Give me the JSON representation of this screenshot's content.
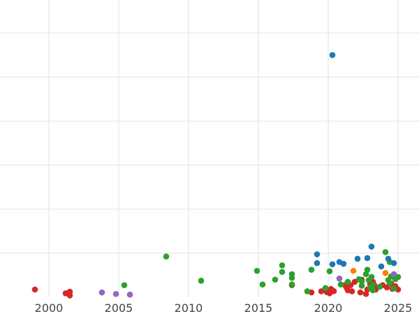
{
  "chart_data": {
    "type": "scatter",
    "title": "",
    "xlabel": "",
    "ylabel": "",
    "xlim": [
      1996.5,
      2026.5
    ],
    "ylim": [
      0,
      13.5
    ],
    "grid": true,
    "y_gridlines": [
      2,
      4,
      6,
      8,
      10,
      12
    ],
    "x_ticks": [
      2000,
      2005,
      2010,
      2015,
      2020,
      2025
    ],
    "x_tick_labels": [
      "2000",
      "2005",
      "2010",
      "2015",
      "2020",
      "2025"
    ],
    "series": [
      {
        "color": "#d62728",
        "points": [
          [
            1999.0,
            0.35
          ],
          [
            2001.2,
            0.18
          ],
          [
            2001.5,
            0.08
          ],
          [
            2001.5,
            0.25
          ],
          [
            2017.4,
            0.55
          ],
          [
            2018.8,
            0.22
          ],
          [
            2019.5,
            0.27
          ],
          [
            2019.9,
            0.23
          ],
          [
            2020.1,
            0.18
          ],
          [
            2020.2,
            0.38
          ],
          [
            2020.4,
            0.28
          ],
          [
            2021.2,
            0.55
          ],
          [
            2021.3,
            0.45
          ],
          [
            2021.4,
            0.32
          ],
          [
            2021.6,
            0.55
          ],
          [
            2021.7,
            0.27
          ],
          [
            2021.9,
            0.7
          ],
          [
            2022.3,
            0.22
          ],
          [
            2022.4,
            0.8
          ],
          [
            2022.7,
            0.15
          ],
          [
            2022.8,
            0.35
          ],
          [
            2023.0,
            0.6
          ],
          [
            2023.2,
            0.4
          ],
          [
            2023.2,
            0.7
          ],
          [
            2023.3,
            0.55
          ],
          [
            2023.4,
            0.35
          ],
          [
            2023.9,
            0.55
          ],
          [
            2024.2,
            0.45
          ],
          [
            2024.5,
            0.62
          ],
          [
            2024.6,
            0.38
          ],
          [
            2024.8,
            0.5
          ],
          [
            2025.0,
            0.35
          ]
        ]
      },
      {
        "color": "#2ca02c",
        "points": [
          [
            2005.4,
            0.55
          ],
          [
            2008.4,
            1.85
          ],
          [
            2010.9,
            0.75
          ],
          [
            2014.9,
            1.2
          ],
          [
            2015.3,
            0.58
          ],
          [
            2016.2,
            0.8
          ],
          [
            2016.7,
            1.45
          ],
          [
            2016.7,
            1.15
          ],
          [
            2017.4,
            1.05
          ],
          [
            2017.4,
            0.88
          ],
          [
            2017.4,
            0.58
          ],
          [
            2018.5,
            0.27
          ],
          [
            2018.8,
            1.25
          ],
          [
            2019.8,
            0.42
          ],
          [
            2020.1,
            1.18
          ],
          [
            2020.9,
            0.58
          ],
          [
            2021.4,
            0.7
          ],
          [
            2022.2,
            0.82
          ],
          [
            2022.4,
            0.52
          ],
          [
            2022.4,
            0.72
          ],
          [
            2022.7,
            1.05
          ],
          [
            2022.8,
            1.25
          ],
          [
            2022.9,
            0.78
          ],
          [
            2023.1,
            0.92
          ],
          [
            2023.2,
            0.55
          ],
          [
            2023.2,
            0.32
          ],
          [
            2023.7,
            0.48
          ],
          [
            2024.1,
            2.05
          ],
          [
            2024.3,
            0.78
          ],
          [
            2024.4,
            0.65
          ],
          [
            2024.5,
            0.95
          ],
          [
            2024.7,
            0.4
          ],
          [
            2024.8,
            0.82
          ],
          [
            2025.0,
            0.92
          ],
          [
            2024.4,
            1.6
          ],
          [
            2023.0,
            0.45
          ]
        ]
      },
      {
        "color": "#1f77b4",
        "points": [
          [
            2019.2,
            1.95
          ],
          [
            2019.2,
            1.55
          ],
          [
            2020.3,
            11.0
          ],
          [
            2020.3,
            1.5
          ],
          [
            2020.8,
            1.6
          ],
          [
            2021.1,
            1.52
          ],
          [
            2022.1,
            1.75
          ],
          [
            2022.8,
            1.78
          ],
          [
            2023.1,
            2.3
          ],
          [
            2023.8,
            1.4
          ],
          [
            2024.3,
            1.75
          ],
          [
            2024.7,
            1.55
          ]
        ]
      },
      {
        "color": "#ff7f0e",
        "points": [
          [
            2021.8,
            1.2
          ],
          [
            2024.1,
            1.1
          ]
        ]
      },
      {
        "color": "#9467bd",
        "points": [
          [
            2003.8,
            0.22
          ],
          [
            2004.8,
            0.15
          ],
          [
            2005.8,
            0.12
          ],
          [
            2020.8,
            0.85
          ],
          [
            2024.7,
            1.05
          ]
        ]
      }
    ]
  }
}
